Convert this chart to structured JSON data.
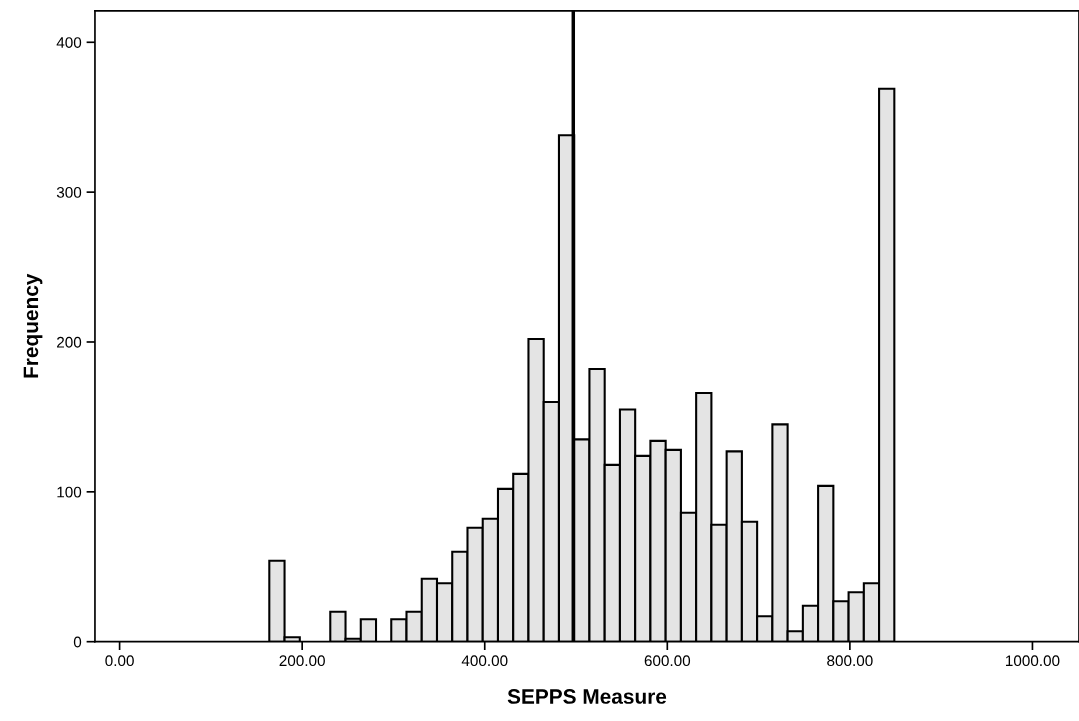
{
  "chart_data": {
    "type": "histogram",
    "xlabel": "SEPPS Measure",
    "ylabel": "Frequency",
    "bins": [
      164,
      180.7,
      197.4,
      214.1,
      230.8,
      247.5,
      264.2,
      280.9,
      297.6,
      314.3,
      331,
      347.7,
      364.4,
      381.1,
      397.8,
      414.5,
      431.2,
      447.9,
      464.6,
      481.3,
      498,
      514.7,
      531.4,
      548.1,
      564.8,
      581.5,
      598.2,
      614.9,
      631.6,
      648.3,
      665,
      681.7,
      698.4,
      715.1,
      731.8,
      748.5,
      765.2,
      781.9,
      798.6,
      815.3,
      832,
      848.7
    ],
    "values": [
      54,
      3,
      0,
      0,
      20,
      2,
      15,
      0,
      15,
      20,
      42,
      39,
      60,
      76,
      82,
      102,
      112,
      202,
      160,
      338,
      135,
      182,
      118,
      155,
      124,
      134,
      128,
      86,
      166,
      78,
      127,
      80,
      17,
      145,
      7,
      24,
      104,
      27,
      33,
      39,
      369
    ],
    "color": "#e4e4e4",
    "xlim": [
      -27,
      1051
    ],
    "ylim": [
      0,
      421
    ],
    "xticks": [
      {
        "value": 0,
        "label": "0.00"
      },
      {
        "value": 200,
        "label": "200.00"
      },
      {
        "value": 400,
        "label": "400.00"
      },
      {
        "value": 600,
        "label": "600.00"
      },
      {
        "value": 800,
        "label": "800.00"
      },
      {
        "value": 1000,
        "label": "1000.00"
      }
    ],
    "yticks": [
      0,
      100,
      200,
      300,
      400
    ],
    "ref_lines": [
      {
        "axis": "x",
        "value": 497,
        "color": "#000000"
      }
    ],
    "grid": false
  }
}
